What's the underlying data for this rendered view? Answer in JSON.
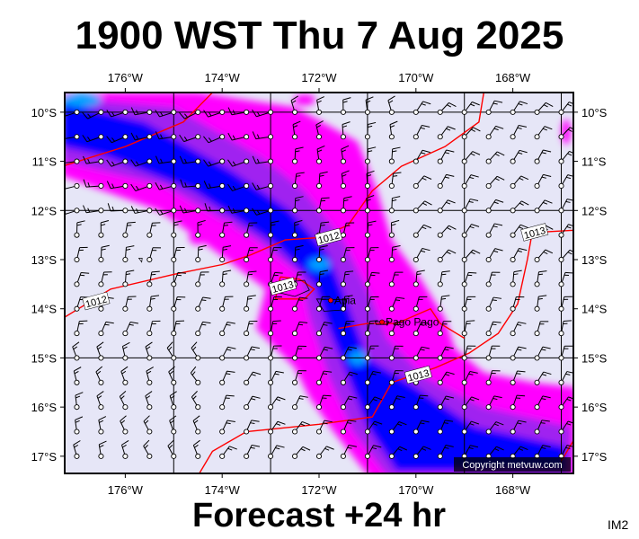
{
  "title": "1900 WST Thu 7 Aug 2025",
  "footer": "Forecast +24 hr",
  "corner_label": "IM2",
  "copyright": "Copyright metvuw.com",
  "map": {
    "lon_range": [
      -177.25,
      -166.75
    ],
    "lat_range": [
      -17.35,
      -9.6
    ],
    "lon_ticks": [
      {
        "value": -176,
        "label": "176°W"
      },
      {
        "value": -174,
        "label": "174°W"
      },
      {
        "value": -172,
        "label": "172°W"
      },
      {
        "value": -170,
        "label": "170°W"
      },
      {
        "value": -168,
        "label": "168°W"
      }
    ],
    "lat_ticks": [
      {
        "value": -10,
        "label": "10°S"
      },
      {
        "value": -11,
        "label": "11°S"
      },
      {
        "value": -12,
        "label": "12°S"
      },
      {
        "value": -13,
        "label": "13°S"
      },
      {
        "value": -14,
        "label": "14°S"
      },
      {
        "value": -15,
        "label": "15°S"
      },
      {
        "value": -16,
        "label": "16°S"
      },
      {
        "value": -17,
        "label": "17°S"
      }
    ],
    "places": [
      {
        "name": "Apia",
        "lon": -171.76,
        "lat": -13.83
      },
      {
        "name": "Pago Pago",
        "lon": -170.7,
        "lat": -14.27
      }
    ],
    "isobar_labels": [
      {
        "text": "1012",
        "lon": -176.6,
        "lat": -13.85
      },
      {
        "text": "1013",
        "lon": -172.75,
        "lat": -13.55
      },
      {
        "text": "1012",
        "lon": -171.8,
        "lat": -12.55
      },
      {
        "text": "1013",
        "lon": -169.95,
        "lat": -15.35
      },
      {
        "text": "1013",
        "lon": -167.55,
        "lat": -12.45
      }
    ],
    "colors": {
      "background": "#e6e6f7",
      "rain_light": "#ff00ff",
      "rain_moderate": "#a020f0",
      "rain_heavy": "#0000ff",
      "rain_very_heavy": "#00a0ff",
      "isobar": "#ff0000"
    }
  }
}
